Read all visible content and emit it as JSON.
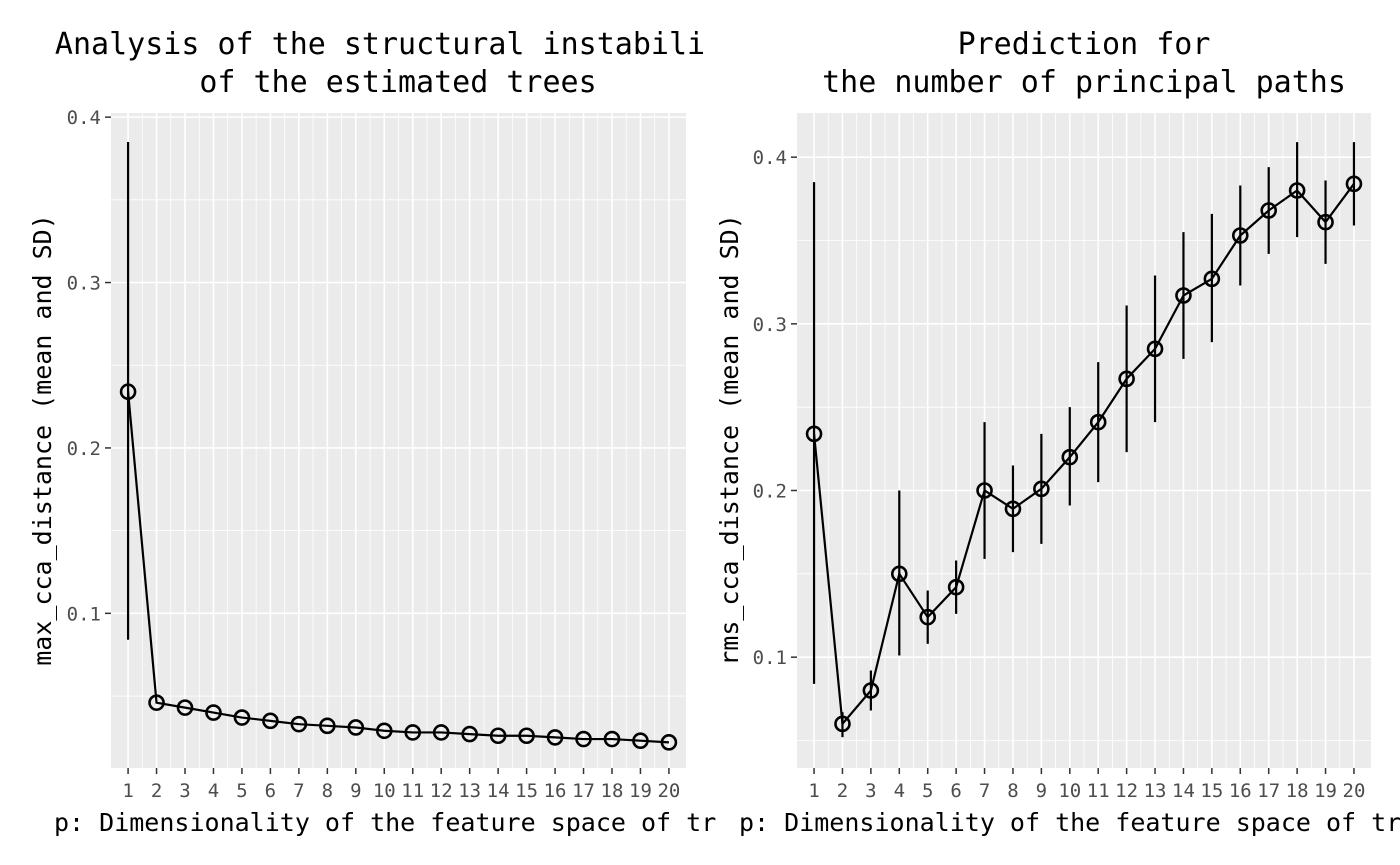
{
  "chart_data": [
    {
      "type": "line",
      "title_lines": [
        "Analysis of the structural instabili",
        "of the estimated trees"
      ],
      "xlabel": "p: Dimensionality of the feature space of tr",
      "ylabel": "max_cca_distance (mean and SD)",
      "categories": [
        "1",
        "2",
        "3",
        "4",
        "5",
        "6",
        "7",
        "8",
        "9",
        "10",
        "11",
        "12",
        "13",
        "14",
        "15",
        "16",
        "17",
        "18",
        "19",
        "20"
      ],
      "series": [
        {
          "name": "max_cca_distance",
          "values": [
            0.234,
            0.046,
            0.043,
            0.04,
            0.037,
            0.035,
            0.033,
            0.032,
            0.031,
            0.029,
            0.028,
            0.028,
            0.027,
            0.026,
            0.026,
            0.025,
            0.024,
            0.024,
            0.023,
            0.022
          ],
          "sd_low": [
            0.084,
            0.046,
            0.043,
            0.04,
            0.037,
            0.035,
            0.033,
            0.032,
            0.031,
            0.029,
            0.028,
            0.028,
            0.027,
            0.026,
            0.026,
            0.025,
            0.024,
            0.024,
            0.023,
            0.022
          ],
          "sd_high": [
            0.385,
            0.046,
            0.043,
            0.04,
            0.037,
            0.035,
            0.033,
            0.032,
            0.031,
            0.029,
            0.028,
            0.028,
            0.027,
            0.026,
            0.026,
            0.025,
            0.024,
            0.024,
            0.023,
            0.022
          ]
        }
      ],
      "yticks": [
        0.1,
        0.2,
        0.3,
        0.4
      ],
      "ytick_labels": [
        "0.1",
        "0.2",
        "0.3",
        "0.4"
      ],
      "ylim": [
        0.0065,
        0.4025
      ],
      "grid": true
    },
    {
      "type": "line",
      "title_lines": [
        "Prediction for",
        "the number of principal paths"
      ],
      "xlabel": "p: Dimensionality of the feature space of tre",
      "ylabel": "rms_cca_distance (mean and SD)",
      "categories": [
        "1",
        "2",
        "3",
        "4",
        "5",
        "6",
        "7",
        "8",
        "9",
        "10",
        "11",
        "12",
        "13",
        "14",
        "15",
        "16",
        "17",
        "18",
        "19",
        "20"
      ],
      "series": [
        {
          "name": "rms_cca_distance",
          "values": [
            0.234,
            0.06,
            0.08,
            0.15,
            0.124,
            0.142,
            0.2,
            0.189,
            0.201,
            0.22,
            0.241,
            0.267,
            0.285,
            0.317,
            0.327,
            0.353,
            0.368,
            0.38,
            0.361,
            0.384
          ],
          "sd_low": [
            0.084,
            0.052,
            0.068,
            0.101,
            0.108,
            0.126,
            0.159,
            0.163,
            0.168,
            0.191,
            0.205,
            0.223,
            0.241,
            0.279,
            0.289,
            0.323,
            0.342,
            0.352,
            0.336,
            0.359
          ],
          "sd_high": [
            0.385,
            0.067,
            0.092,
            0.2,
            0.14,
            0.158,
            0.241,
            0.215,
            0.234,
            0.25,
            0.277,
            0.311,
            0.329,
            0.355,
            0.366,
            0.383,
            0.394,
            0.409,
            0.386,
            0.409
          ]
        }
      ],
      "yticks": [
        0.1,
        0.2,
        0.3,
        0.4
      ],
      "ytick_labels": [
        "0.1",
        "0.2",
        "0.3",
        "0.4"
      ],
      "ylim": [
        0.0335,
        0.4265
      ],
      "grid": true
    }
  ]
}
